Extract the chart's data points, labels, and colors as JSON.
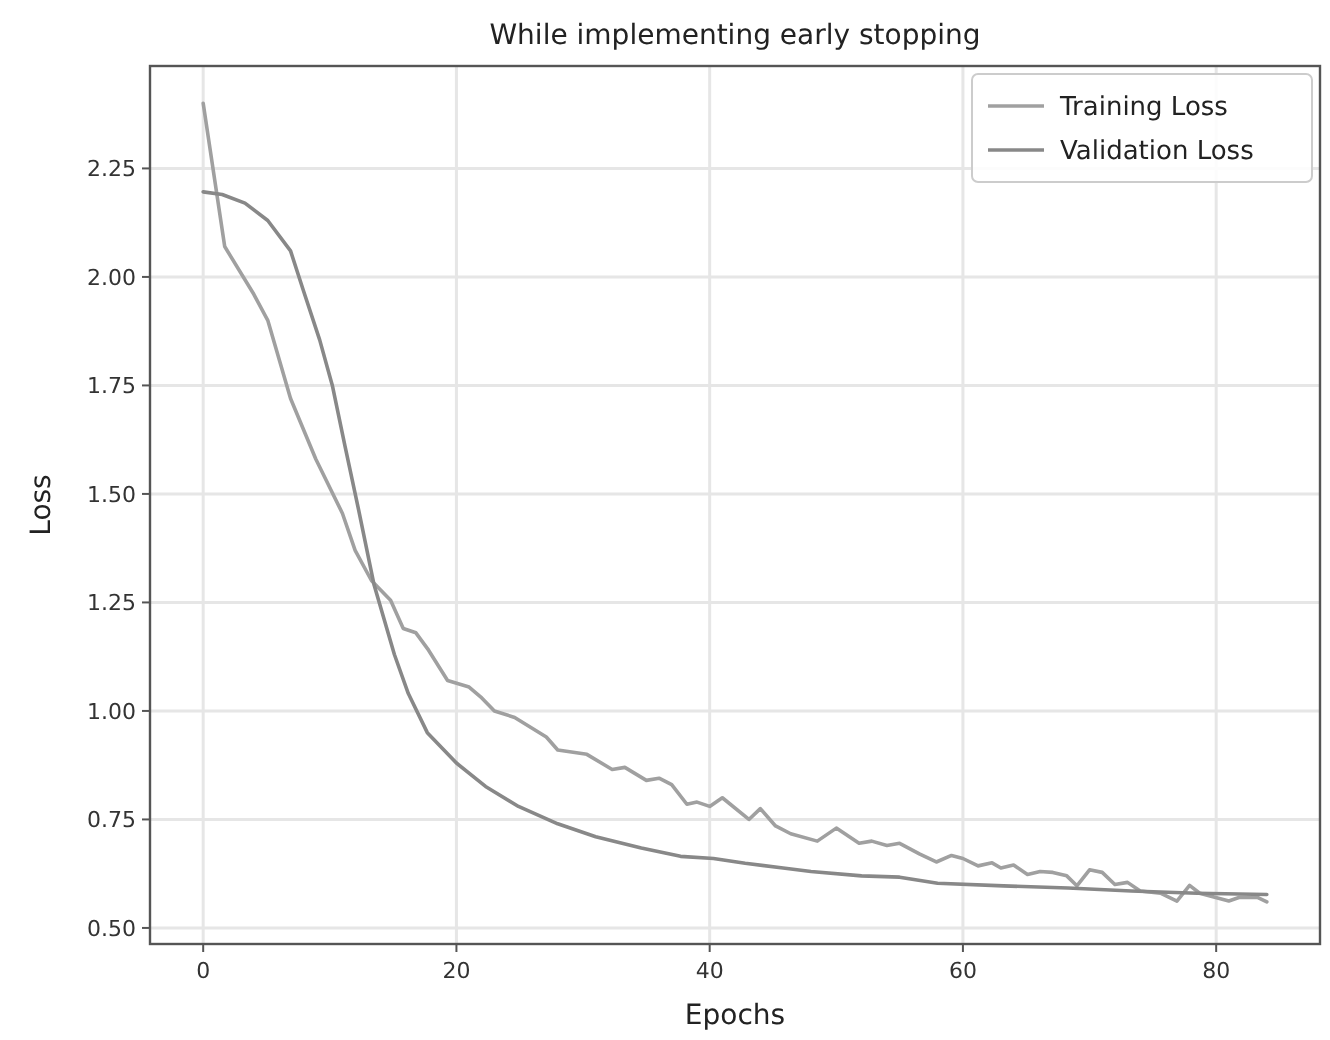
{
  "chart_data": {
    "type": "line",
    "title": "While implementing early stopping",
    "xlabel": "Epochs",
    "ylabel": "Loss",
    "xlim": [
      -4.2,
      88.2
    ],
    "ylim": [
      0.463,
      2.486
    ],
    "xticks": [
      0,
      20,
      40,
      60,
      80
    ],
    "yticks": [
      {
        "value": 0.5,
        "label": "0.50"
      },
      {
        "value": 0.75,
        "label": "0.75"
      },
      {
        "value": 1.0,
        "label": "1.00"
      },
      {
        "value": 1.25,
        "label": "1.25"
      },
      {
        "value": 1.5,
        "label": "1.50"
      },
      {
        "value": 1.75,
        "label": "1.75"
      },
      {
        "value": 2.0,
        "label": "2.00"
      },
      {
        "value": 2.25,
        "label": "2.25"
      }
    ],
    "grid": true,
    "legend": "top right",
    "line_style": "solid",
    "series": [
      {
        "name": "Training Loss",
        "color": "#a0a0a0",
        "x": [
          0,
          1.7,
          4,
          5.1,
          6.9,
          8.9,
          11,
          12,
          13.3,
          14.8,
          15.8,
          16.8,
          17.8,
          19.3,
          21,
          22,
          23,
          24.6,
          27.1,
          28,
          30.3,
          32.3,
          33.3,
          35,
          36,
          37,
          38.2,
          39,
          40,
          41,
          43.1,
          44,
          45.2,
          46.4,
          48.5,
          50,
          51.8,
          52.8,
          54,
          55,
          56.6,
          57.9,
          59.1,
          60,
          61.2,
          62.3,
          63,
          64,
          65.1,
          66.1,
          67.1,
          68.2,
          69,
          70,
          71,
          72,
          73,
          74,
          75.6,
          76.9,
          77.9,
          78.7,
          81,
          81.8,
          83.3,
          84
        ],
        "values": [
          2.4,
          2.07,
          1.96,
          1.9,
          1.72,
          1.58,
          1.455,
          1.37,
          1.3,
          1.255,
          1.19,
          1.18,
          1.14,
          1.07,
          1.055,
          1.03,
          1.0,
          0.985,
          0.94,
          0.91,
          0.9,
          0.865,
          0.87,
          0.84,
          0.845,
          0.83,
          0.785,
          0.79,
          0.78,
          0.8,
          0.75,
          0.775,
          0.735,
          0.717,
          0.7,
          0.73,
          0.695,
          0.7,
          0.69,
          0.695,
          0.67,
          0.652,
          0.667,
          0.66,
          0.643,
          0.65,
          0.638,
          0.645,
          0.623,
          0.63,
          0.628,
          0.62,
          0.597,
          0.634,
          0.628,
          0.6,
          0.605,
          0.585,
          0.58,
          0.562,
          0.598,
          0.58,
          0.562,
          0.57,
          0.57,
          0.56
        ]
      },
      {
        "name": "Validation Loss",
        "color": "#888888",
        "x": [
          0,
          1.5,
          3.3,
          5.1,
          6.9,
          7.9,
          9.2,
          10.2,
          11.2,
          12.3,
          13.5,
          14.3,
          15.1,
          16.2,
          17.7,
          20,
          22.3,
          24.9,
          28,
          31,
          34.6,
          37.7,
          40.3,
          42.8,
          45.8,
          48,
          52,
          55,
          58,
          63.2,
          68.3,
          73.3,
          78.5,
          84
        ],
        "values": [
          2.196,
          2.19,
          2.17,
          2.13,
          2.06,
          1.97,
          1.855,
          1.75,
          1.61,
          1.46,
          1.29,
          1.21,
          1.13,
          1.04,
          0.95,
          0.88,
          0.826,
          0.78,
          0.74,
          0.71,
          0.684,
          0.665,
          0.66,
          0.649,
          0.638,
          0.63,
          0.62,
          0.617,
          0.603,
          0.597,
          0.592,
          0.585,
          0.58,
          0.577
        ]
      }
    ]
  }
}
